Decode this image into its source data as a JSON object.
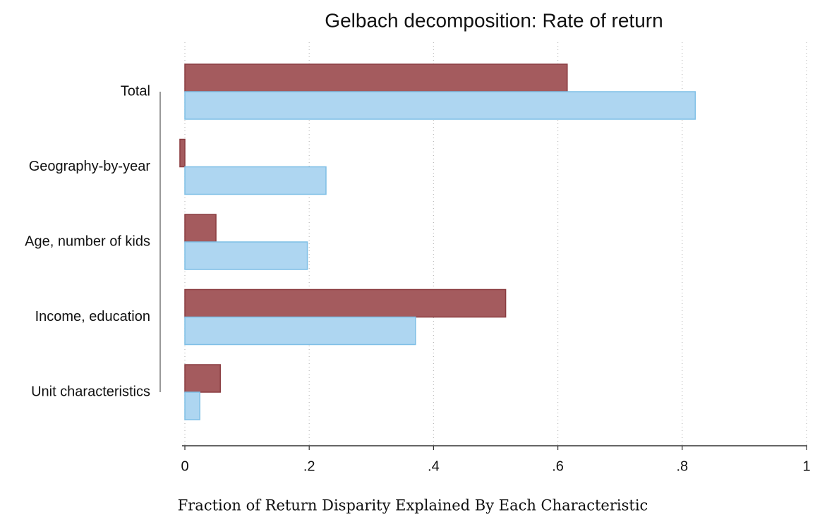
{
  "chart_data": {
    "type": "hbar",
    "title": "Gelbach decomposition: Rate of return",
    "x_label": "Fraction of Return Disparity Explained By Each Characteristic",
    "categories": [
      "Total",
      "Geography-by-year",
      "Age, number of kids",
      "Income, education",
      "Unit characteristics"
    ],
    "series": [
      {
        "color": "#a45b5e",
        "values": [
          0.615,
          -0.008,
          0.05,
          0.516,
          0.057
        ]
      },
      {
        "color": "#aed6f1",
        "values": [
          0.821,
          0.227,
          0.197,
          0.371,
          0.024
        ]
      }
    ],
    "xlim": [
      0,
      1
    ],
    "xticks": [
      0,
      {
        "value": 0.2,
        "label": ".2"
      },
      {
        "value": 0.4,
        "label": ".4"
      },
      {
        "value": 0.6,
        "label": ".6"
      },
      {
        "value": 0.8,
        "label": ".8"
      },
      1
    ],
    "grid": true
  }
}
